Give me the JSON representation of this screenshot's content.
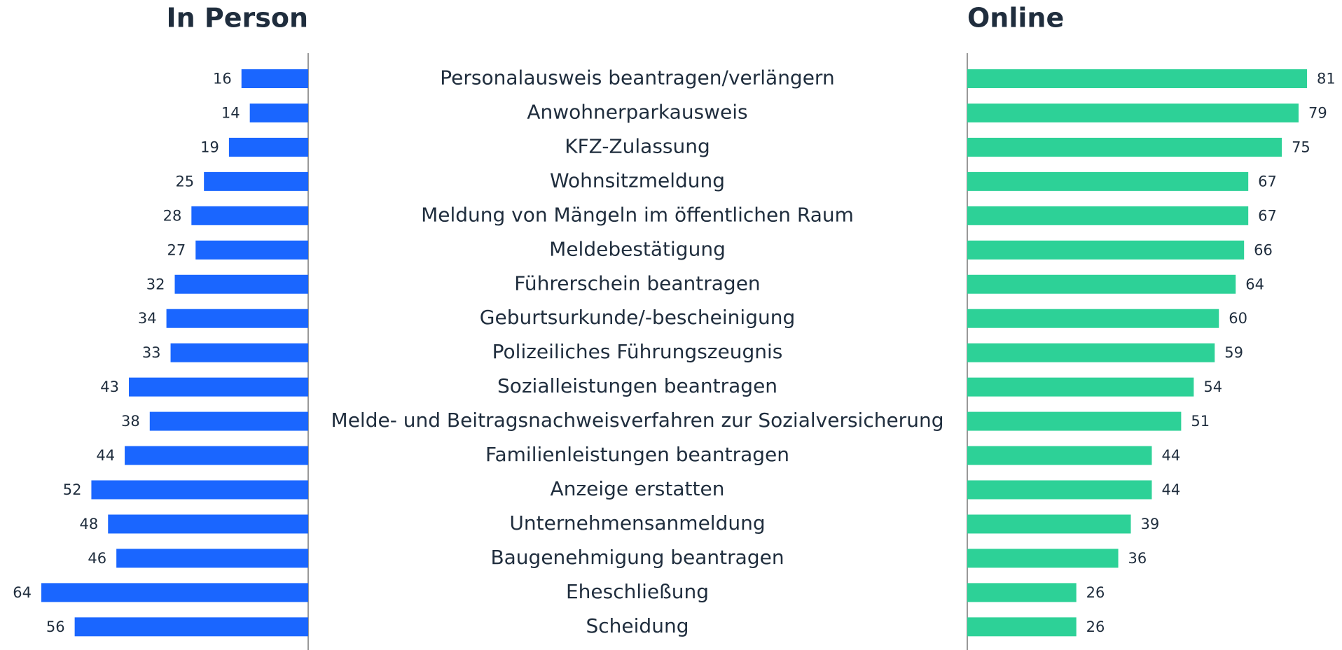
{
  "chart_data": [
    {
      "type": "bar",
      "title": "In Person",
      "color": "#1a66ff",
      "xlim": [
        0,
        64
      ],
      "categories": [
        "Personalausweis beantragen/verlängern",
        "Anwohnerparkausweis",
        "KFZ-Zulassung",
        "Wohnsitzmeldung",
        "Meldung von Mängeln im öffentlichen Raum",
        "Meldebestätigung",
        "Führerschein beantragen",
        "Geburtsurkunde/-bescheinigung",
        "Polizeiliches Führungszeugnis",
        "Sozialleistungen beantragen",
        "Melde- und Beitragsnachweisverfahren zur Sozialversicherung",
        "Familienleistungen beantragen",
        "Anzeige erstatten",
        "Unternehmensanmeldung",
        "Baugenehmigung beantragen",
        "Eheschließung",
        "Scheidung"
      ],
      "values": [
        16,
        14,
        19,
        25,
        28,
        27,
        32,
        34,
        33,
        43,
        38,
        44,
        52,
        48,
        46,
        64,
        56
      ]
    },
    {
      "type": "bar",
      "title": "Online",
      "color": "#2dd197",
      "xlim": [
        0,
        81
      ],
      "values": [
        81,
        79,
        75,
        67,
        67,
        66,
        64,
        60,
        59,
        54,
        51,
        44,
        44,
        39,
        36,
        26,
        26
      ]
    }
  ]
}
